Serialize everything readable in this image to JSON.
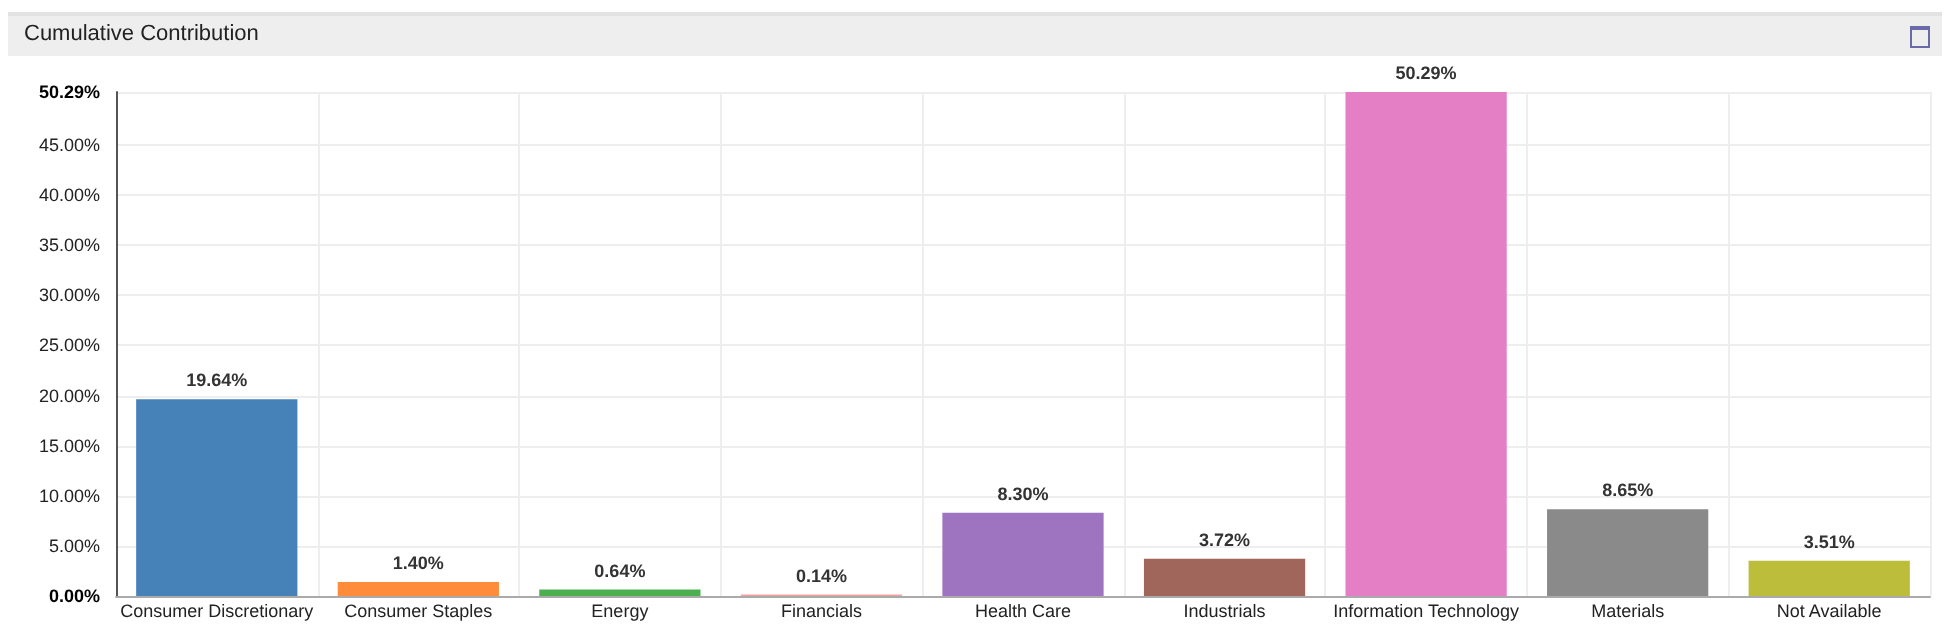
{
  "chart_data": {
    "type": "bar",
    "title": "Cumulative Contribution",
    "categories": [
      "Consumer Discretionary",
      "Consumer Staples",
      "Energy",
      "Financials",
      "Health Care",
      "Industrials",
      "Information Technology",
      "Materials",
      "Not Available"
    ],
    "values": [
      19.64,
      1.4,
      0.64,
      0.14,
      8.3,
      3.72,
      50.29,
      8.65,
      3.51
    ],
    "colors": [
      "#4682b8",
      "#ff8c3a",
      "#4caf50",
      "#f2a0a0",
      "#9e73c0",
      "#a0655b",
      "#e47fc5",
      "#8a8a8a",
      "#bcbd3a"
    ],
    "value_labels": [
      "19.64%",
      "1.40%",
      "0.64%",
      "0.14%",
      "8.30%",
      "3.72%",
      "50.29%",
      "8.65%",
      "3.51%"
    ],
    "ylim": [
      0,
      50.29
    ],
    "yticks": [
      {
        "value": 0,
        "label": "0.00%"
      },
      {
        "value": 5,
        "label": "5.00%"
      },
      {
        "value": 10,
        "label": "10.00%"
      },
      {
        "value": 15,
        "label": "15.00%"
      },
      {
        "value": 20,
        "label": "20.00%"
      },
      {
        "value": 25,
        "label": "25.00%"
      },
      {
        "value": 30,
        "label": "30.00%"
      },
      {
        "value": 35,
        "label": "35.00%"
      },
      {
        "value": 40,
        "label": "40.00%"
      },
      {
        "value": 45,
        "label": "45.00%"
      },
      {
        "value": 50.29,
        "label": "50.29%"
      }
    ],
    "grid": true
  }
}
